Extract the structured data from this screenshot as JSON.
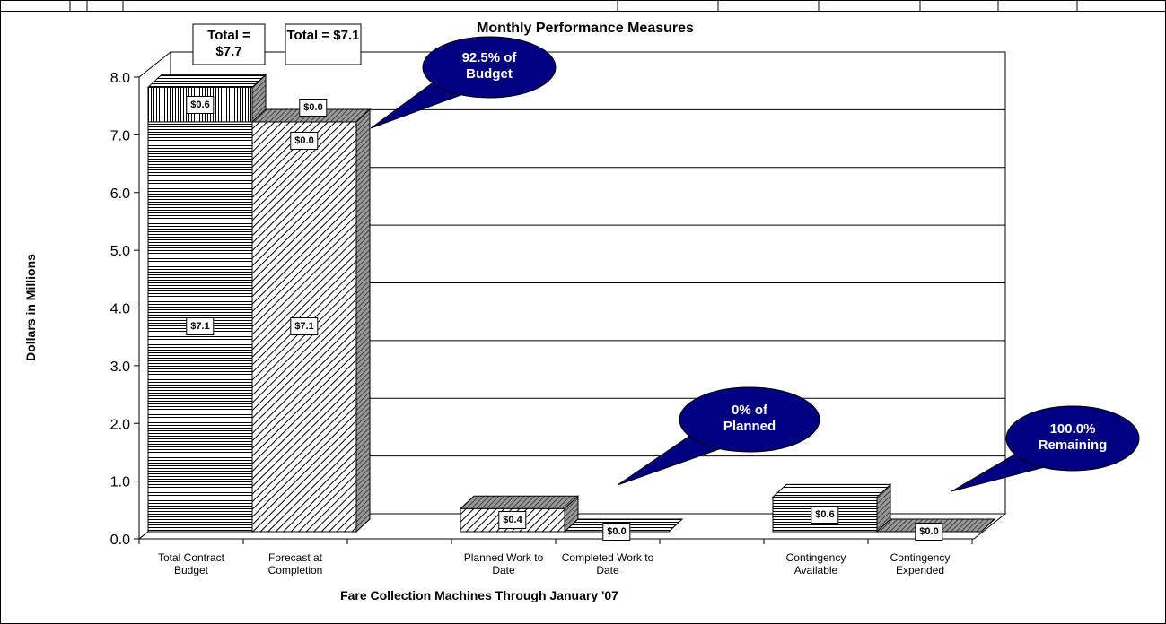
{
  "chart_data": {
    "type": "bar3d_stacked",
    "title": "Monthly Performance Measures",
    "x_label": "Fare Collection Machines Through January '07",
    "y_label": "Dollars in Millions",
    "categories": [
      "Total Contract Budget",
      "Forecast at Completion",
      null,
      "Planned Work  to Date",
      "Completed Work to Date",
      null,
      "Contingency Available",
      "Contingency Expended"
    ],
    "series": [
      {
        "values": [
          7.1,
          7.1,
          null,
          0.4,
          0.0,
          null,
          0.6,
          0.0
        ],
        "value_labels": [
          "$7.1",
          "$7.1",
          null,
          "$0.4",
          "$0.0",
          null,
          "$0.6",
          "$0.0"
        ]
      },
      {
        "values": [
          0.6,
          0.0,
          null,
          null,
          null,
          null,
          null,
          null
        ],
        "value_labels": [
          "$0.6",
          "$0.0",
          null,
          null,
          null,
          null,
          null,
          null
        ]
      },
      {
        "values": [
          null,
          0.0,
          null,
          null,
          null,
          null,
          null,
          null
        ],
        "value_labels": [
          null,
          "$0.0",
          null,
          null,
          null,
          null,
          null,
          null
        ]
      }
    ],
    "ylim": [
      0,
      8
    ],
    "yticks": [
      {
        "value": 0,
        "label": "0.0"
      },
      {
        "value": 1,
        "label": "1.0"
      },
      {
        "value": 2,
        "label": "2.0"
      },
      {
        "value": 3,
        "label": "3.0"
      },
      {
        "value": 4,
        "label": "4.0"
      },
      {
        "value": 5,
        "label": "5.0"
      },
      {
        "value": 6,
        "label": "6.0"
      },
      {
        "value": 7,
        "label": "7.0"
      },
      {
        "value": 8,
        "label": "8.0"
      }
    ],
    "grid": true,
    "annotations": [
      {
        "text": "Total = $7.7",
        "style": "box"
      },
      {
        "text": "Total = $7.1",
        "style": "box"
      },
      {
        "text": "92.5% of Budget",
        "style": "callout"
      },
      {
        "text": "0% of Planned",
        "style": "callout"
      },
      {
        "text": "100.0% Remaining",
        "style": "callout"
      }
    ],
    "callout_color": "#000080"
  }
}
